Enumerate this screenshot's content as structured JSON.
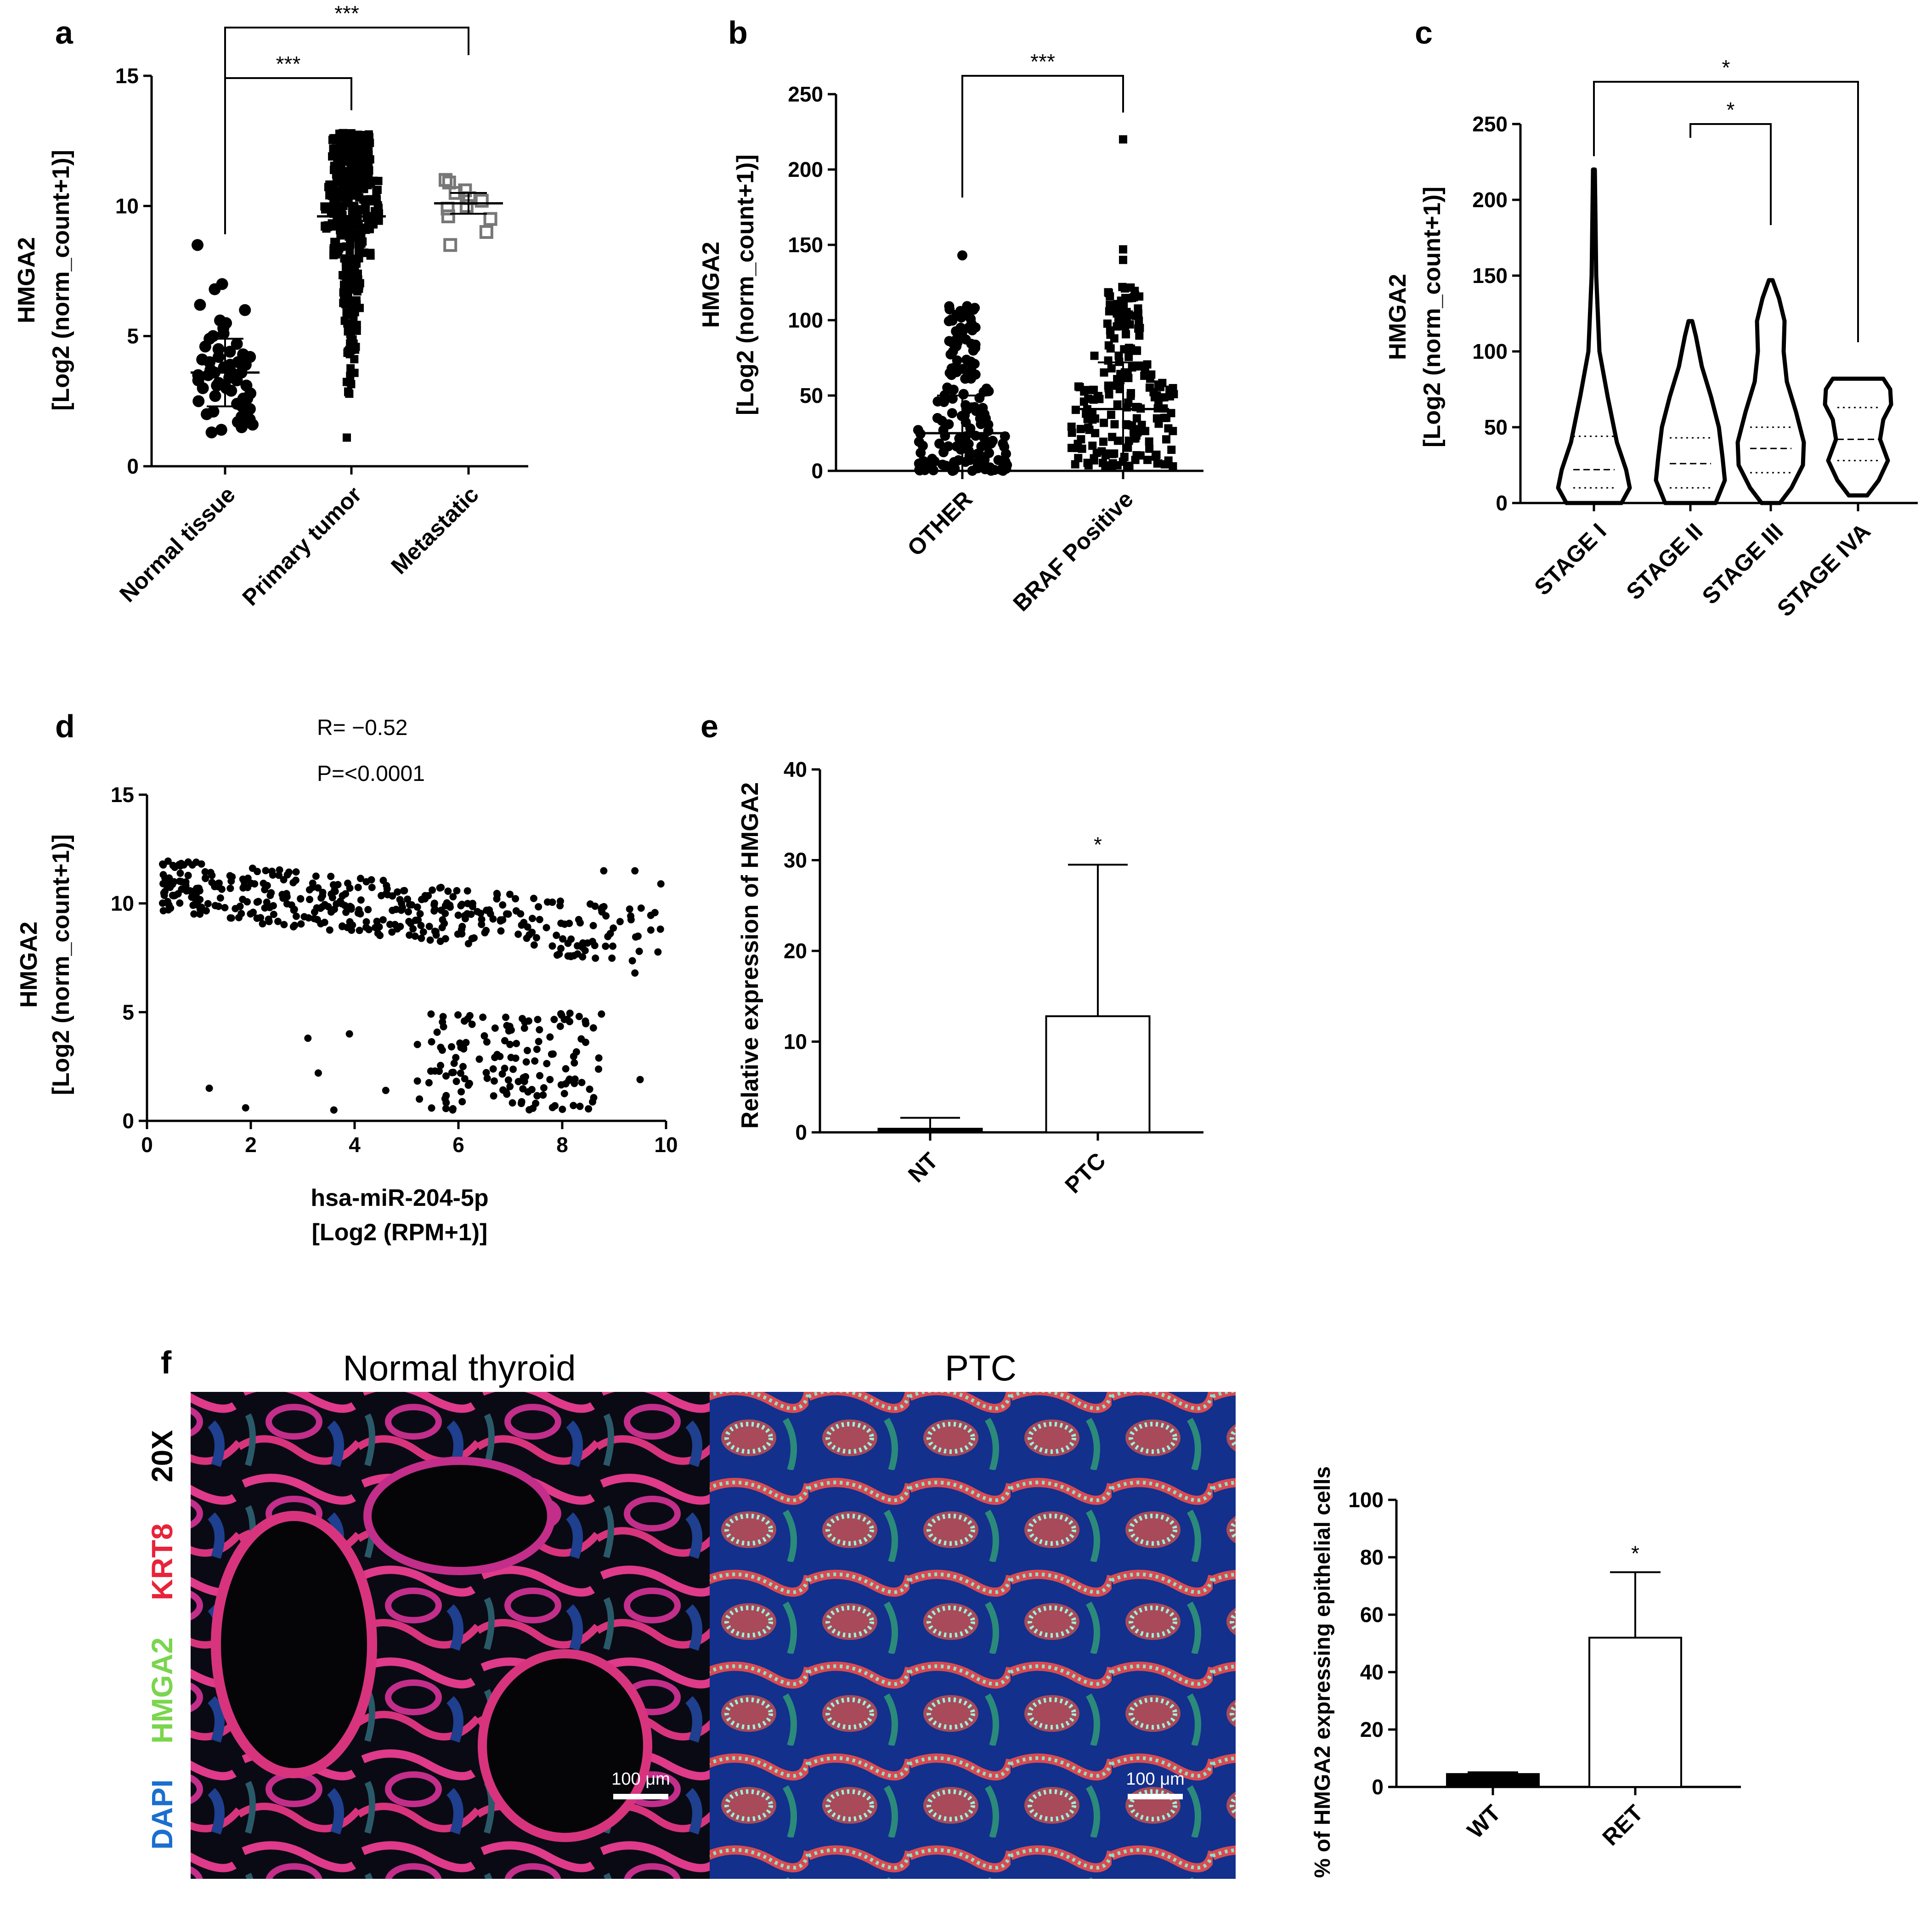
{
  "figure": {
    "panel_labels": [
      "a",
      "b",
      "c",
      "d",
      "e",
      "f"
    ]
  },
  "chart_data": [
    {
      "id": "a",
      "type": "scatter",
      "ylabel_line1": "HMGA2",
      "ylabel_line2": "[Log2 (norm_count+1)]",
      "ylim": [
        0,
        15
      ],
      "yticks": [
        "0",
        "5",
        "10",
        "15"
      ],
      "categories": [
        "Normal tissue",
        "Primary tumor",
        "Metastatic"
      ],
      "means": [
        3.6,
        9.6,
        10.1
      ],
      "sd": [
        1.3,
        0.4,
        0.4
      ],
      "series": [
        {
          "name": "Normal tissue",
          "values": [
            8.5,
            7.0,
            6.8,
            6.2,
            6.0,
            5.6,
            5.5,
            5.3,
            5.1,
            5.0,
            4.9,
            4.7,
            4.6,
            4.5,
            4.4,
            4.3,
            4.2,
            4.1,
            4.0,
            4.0,
            3.9,
            3.8,
            3.8,
            3.7,
            3.6,
            3.6,
            3.5,
            3.5,
            3.4,
            3.3,
            3.3,
            3.2,
            3.1,
            3.0,
            3.0,
            2.9,
            2.8,
            2.7,
            2.6,
            2.5,
            2.4,
            2.3,
            2.2,
            2.1,
            2.0,
            1.9,
            1.8,
            1.7,
            1.6,
            1.5,
            1.4,
            1.3,
            3.6,
            3.4,
            4.2,
            2.6,
            3.1,
            3.9
          ]
        },
        {
          "name": "Primary tumor",
          "values": [
            12.8,
            12.5,
            12.2,
            12.0,
            11.8,
            11.5,
            11.2,
            11.0,
            10.8,
            10.5,
            10.2,
            10.0,
            9.8,
            9.5,
            9.2,
            9.0,
            8.5,
            8.0,
            7.5,
            7.0,
            6.5,
            6.0,
            5.5,
            5.0,
            4.5,
            4.0,
            3.5,
            3.0,
            2.5,
            2.0,
            1.5,
            1.0,
            0.5
          ]
        },
        {
          "name": "Metastatic",
          "values": [
            11.0,
            10.9,
            10.6,
            10.5,
            10.3,
            10.2,
            10.0,
            9.9,
            9.6,
            9.5,
            9.0,
            8.5
          ]
        }
      ],
      "significance": [
        {
          "from": "Normal tissue",
          "to": "Primary tumor",
          "label": "***"
        },
        {
          "from": "Normal tissue",
          "to": "Metastatic",
          "label": "***"
        }
      ]
    },
    {
      "id": "b",
      "type": "scatter",
      "ylabel_line1": "HMGA2",
      "ylabel_line2": "[Log2 (norm_count+1)]",
      "ylim": [
        0,
        250
      ],
      "yticks": [
        "0",
        "50",
        "100",
        "150",
        "200",
        "250"
      ],
      "categories": [
        "OTHER",
        "BRAF Positive"
      ],
      "means": [
        25,
        41
      ],
      "sd": [
        25,
        31
      ],
      "series": [
        {
          "name": "OTHER",
          "values": [
            143,
            110,
            104,
            98,
            92,
            85,
            80,
            76,
            70,
            66,
            62,
            58,
            55,
            52,
            49,
            46,
            43,
            40,
            37,
            34,
            31,
            28,
            25,
            22,
            19,
            16,
            13,
            10,
            8,
            6,
            4,
            3,
            2,
            1,
            0
          ]
        },
        {
          "name": "BRAF Positive",
          "values": [
            220,
            147,
            140,
            132,
            125,
            118,
            112,
            105,
            98,
            92,
            88,
            82,
            76,
            72,
            68,
            64,
            60,
            56,
            52,
            48,
            45,
            42,
            39,
            36,
            33,
            30,
            27,
            24,
            21,
            18,
            15,
            12,
            9,
            6,
            3
          ]
        }
      ],
      "significance": [
        {
          "from": "OTHER",
          "to": "BRAF Positive",
          "label": "***"
        }
      ]
    },
    {
      "id": "c",
      "type": "violin",
      "ylabel_line1": "HMGA2",
      "ylabel_line2": "[Log2 (norm_count+1)]",
      "ylim": [
        0,
        250
      ],
      "yticks": [
        "0",
        "50",
        "100",
        "150",
        "200",
        "250"
      ],
      "categories": [
        "STAGE I",
        "STAGE II",
        "STAGE III",
        "STAGE IVA"
      ],
      "ranges": [
        [
          0,
          220
        ],
        [
          0,
          120
        ],
        [
          0,
          147
        ],
        [
          5,
          82
        ]
      ],
      "quartiles": [
        [
          10,
          22,
          44
        ],
        [
          10,
          26,
          43
        ],
        [
          20,
          36,
          50
        ],
        [
          28,
          42,
          63
        ]
      ],
      "significance": [
        {
          "from": "STAGE II",
          "to": "STAGE III",
          "label": "*"
        },
        {
          "from": "STAGE I",
          "to": "STAGE IVA",
          "label": "*"
        }
      ]
    },
    {
      "id": "d",
      "type": "scatter",
      "ylabel_line1": "HMGA2",
      "ylabel_line2": "[Log2 (norm_count+1)]",
      "xlabel_line1": "hsa-miR-204-5p",
      "xlabel_line2": "[Log2 (RPM+1)]",
      "xlim": [
        0,
        10
      ],
      "ylim": [
        0,
        15
      ],
      "xticks": [
        "0",
        "2",
        "4",
        "6",
        "8",
        "10"
      ],
      "yticks": [
        "0",
        "5",
        "10",
        "15"
      ],
      "r_text": "R= −0.52",
      "p_text": "P=<0.0001",
      "points_upper_cluster_x_range": [
        0.3,
        6.5
      ],
      "points_upper_cluster_y_range": [
        7.0,
        12.8
      ],
      "points_lower_cluster_x_range": [
        5.5,
        8.5
      ],
      "points_lower_cluster_y_range": [
        0.5,
        5.0
      ]
    },
    {
      "id": "e",
      "type": "bar",
      "ylabel": "Relative expression of HMGA2",
      "ylim": [
        0,
        40
      ],
      "yticks": [
        "0",
        "10",
        "20",
        "30",
        "40"
      ],
      "categories": [
        "NT",
        "PTC"
      ],
      "values": [
        0.4,
        12.8
      ],
      "errors": [
        1.2,
        16.7
      ],
      "significance": [
        {
          "over": "PTC",
          "label": "*"
        }
      ],
      "fills": [
        "#000000",
        "#ffffff"
      ]
    },
    {
      "id": "f-bar",
      "type": "bar",
      "ylabel": "% of HMGA2 expressing epithelial cells",
      "ylim": [
        0,
        100
      ],
      "yticks": [
        "0",
        "20",
        "40",
        "60",
        "80",
        "100"
      ],
      "categories": [
        "WT",
        "RET"
      ],
      "values": [
        4.5,
        52
      ],
      "errors": [
        0.6,
        22.8
      ],
      "significance": [
        {
          "over": "RET",
          "label": "*"
        }
      ],
      "fills": [
        "#000000",
        "#ffffff"
      ]
    }
  ],
  "images": {
    "left_title": "Normal thyroid",
    "right_title": "PTC",
    "magnification": "20X",
    "stains": [
      {
        "label": "KRT8",
        "color": "#e8233a"
      },
      {
        "label": "HMGA2",
        "color": "#7bd54e"
      },
      {
        "label": "DAPI",
        "color": "#1a6fd0"
      }
    ],
    "scale_bar_label": "100 μm"
  },
  "colors": {
    "axis": "#000000",
    "metastatic_marker": "#777777"
  }
}
